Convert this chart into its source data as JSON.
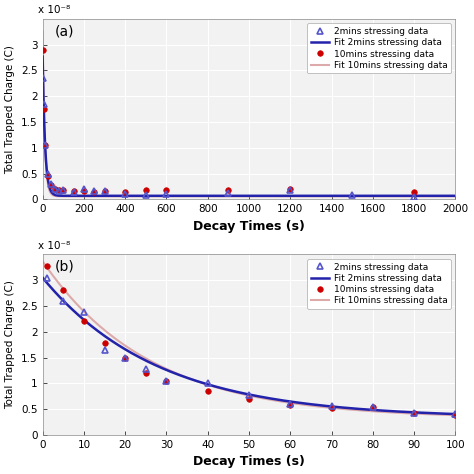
{
  "panel_a": {
    "label": "(a)",
    "xlim": [
      0,
      2000
    ],
    "ylim": [
      0,
      3.5e-08
    ],
    "xticks": [
      0,
      200,
      400,
      600,
      800,
      1000,
      1200,
      1400,
      1600,
      1800,
      2000
    ],
    "yticks": [
      0,
      5e-09,
      1e-08,
      1.5e-08,
      2e-08,
      2.5e-08,
      3e-08
    ],
    "ytick_labels": [
      "0",
      "0.5",
      "1",
      "1.5",
      "2",
      "2.5",
      "3"
    ],
    "scale_label": "x 10⁻⁸",
    "xlabel": "Decay Times (s)",
    "ylabel": "Total Trapped Charge (C)",
    "tri2_x": [
      2,
      6,
      12,
      25,
      40,
      60,
      80,
      100,
      150,
      200,
      250,
      300,
      400,
      500,
      600,
      900,
      1200,
      1500,
      1800
    ],
    "tri2_y": [
      2.35e-08,
      1.85e-08,
      1.05e-08,
      5e-09,
      3e-09,
      2e-09,
      1.6e-09,
      1.8e-09,
      1.5e-09,
      2e-09,
      1.7e-09,
      1.6e-09,
      1e-09,
      8e-10,
      1e-09,
      1.2e-09,
      1.8e-09,
      8e-10,
      5e-10
    ],
    "dot10_x": [
      2,
      6,
      12,
      25,
      40,
      60,
      80,
      100,
      150,
      200,
      250,
      300,
      400,
      500,
      600,
      900,
      1200,
      1800
    ],
    "dot10_y": [
      2.9e-08,
      1.75e-08,
      1.05e-08,
      4.5e-09,
      2.8e-09,
      2.1e-09,
      1.9e-09,
      1.9e-09,
      1.7e-09,
      1.7e-09,
      1.5e-09,
      1.6e-09,
      1.5e-09,
      1.8e-09,
      1.9e-09,
      1.8e-09,
      2e-09,
      1.5e-09
    ],
    "fit2_A1": 2.7e-08,
    "fit2_tau1": 12,
    "fit2_C": 7e-10,
    "fit10_A1": 3.2e-08,
    "fit10_tau1": 10,
    "fit10_C": 6e-10
  },
  "panel_b": {
    "label": "(b)",
    "xlim": [
      0,
      100
    ],
    "ylim": [
      0,
      3.5e-08
    ],
    "xticks": [
      0,
      10,
      20,
      30,
      40,
      50,
      60,
      70,
      80,
      90,
      100
    ],
    "yticks": [
      0,
      5e-09,
      1e-08,
      1.5e-08,
      2e-08,
      2.5e-08,
      3e-08
    ],
    "ytick_labels": [
      "0",
      "0.5",
      "1",
      "1.5",
      "2",
      "2.5",
      "3"
    ],
    "scale_label": "x 10⁻⁸",
    "xlabel": "Decay Times (s)",
    "ylabel": "Total Trapped Charge (C)",
    "tri2_x": [
      1,
      5,
      10,
      15,
      20,
      25,
      30,
      40,
      50,
      60,
      70,
      80,
      90,
      100
    ],
    "tri2_y": [
      3.05e-08,
      2.6e-08,
      2.38e-08,
      1.65e-08,
      1.5e-08,
      1.28e-08,
      1.05e-08,
      1e-08,
      7.7e-09,
      6e-09,
      5.7e-09,
      5.5e-09,
      4.3e-09,
      4e-09
    ],
    "dot10_x": [
      1,
      5,
      10,
      15,
      20,
      25,
      30,
      40,
      50,
      60,
      70,
      80,
      90,
      100
    ],
    "dot10_y": [
      3.28e-08,
      2.82e-08,
      2.22e-08,
      1.78e-08,
      1.5e-08,
      1.2e-08,
      1.05e-08,
      8.5e-09,
      7e-09,
      5.8e-09,
      5.2e-09,
      5.5e-09,
      4.2e-09,
      3.8e-09
    ],
    "fit2_A1": 2.72e-08,
    "fit2_tau1": 28,
    "fit2_C": 3.3e-09,
    "fit10_A1": 3.05e-08,
    "fit10_tau1": 26,
    "fit10_C": 3.2e-09
  },
  "legend": {
    "tri2_label": "2mins stressing data",
    "fit2_label": "Fit 2mins stressing data",
    "dot10_label": "10mins stressing data",
    "fit10_label": "Fit 10mins stressing data"
  },
  "colors": {
    "tri2": "#5555cc",
    "fit2": "#2222aa",
    "dot10": "#cc0000",
    "fit10": "#ddaaaa"
  },
  "bg_color": "#f2f2f2"
}
